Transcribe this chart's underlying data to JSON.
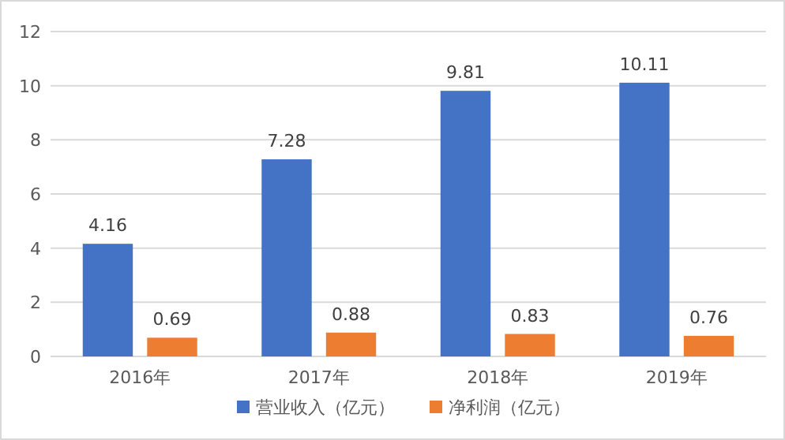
{
  "chart_data": {
    "type": "bar",
    "categories": [
      "2016年",
      "2017年",
      "2018年",
      "2019年"
    ],
    "series": [
      {
        "name": "营业收入（亿元）",
        "color": "#4472c4",
        "values": [
          4.16,
          7.28,
          9.81,
          10.11
        ]
      },
      {
        "name": "净利润（亿元）",
        "color": "#ed7d31",
        "values": [
          0.69,
          0.88,
          0.83,
          0.76
        ]
      }
    ],
    "ylim": [
      0,
      12
    ],
    "yticks": [
      0,
      2,
      4,
      6,
      8,
      10,
      12
    ],
    "grid": "y",
    "legend": "bottom",
    "data_labels": true
  }
}
